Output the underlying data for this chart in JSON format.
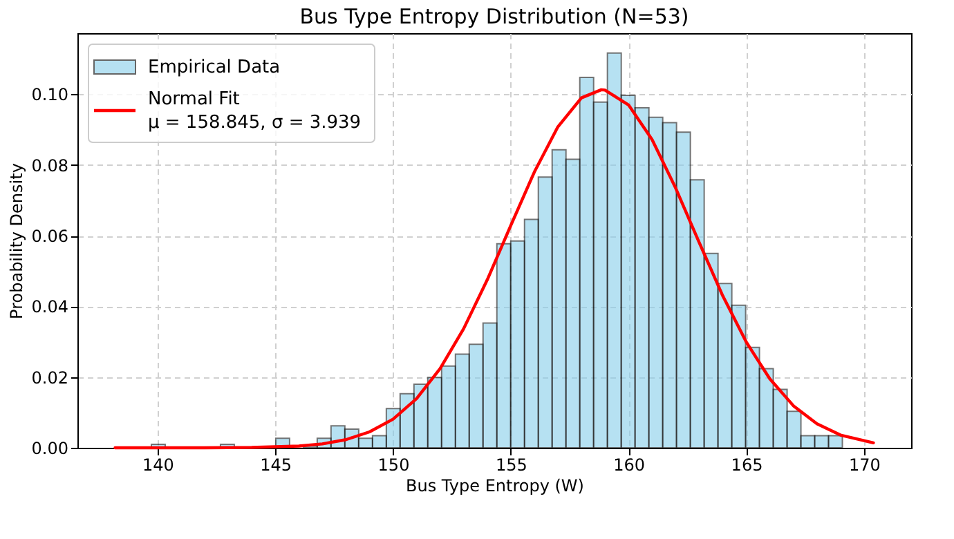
{
  "chart_data": {
    "type": "histogram",
    "title": "Bus Type Entropy Distribution (N=53)",
    "xlabel": "Bus Type Entropy (W)",
    "ylabel": "Probability Density",
    "bins": [
      139.74,
      140.327,
      140.914,
      141.5,
      142.087,
      142.674,
      143.261,
      143.848,
      144.434,
      145.021,
      145.608,
      146.195,
      146.782,
      147.368,
      147.955,
      148.542,
      149.129,
      149.716,
      150.302,
      150.889,
      151.476,
      152.063,
      152.65,
      153.236,
      153.823,
      154.41,
      154.997,
      155.584,
      156.17,
      156.757,
      157.344,
      157.931,
      158.518,
      159.104,
      159.691,
      160.278,
      160.865,
      161.452,
      162.038,
      162.625,
      163.212,
      163.799,
      164.386,
      164.972,
      165.559,
      166.146,
      166.733,
      167.32,
      167.906,
      168.493,
      169.08
    ],
    "series": [
      {
        "name": "Empirical Data",
        "color": "#87ceeb",
        "values": [
          0.001,
          0,
          0,
          0,
          0,
          0.001,
          0,
          0,
          null,
          0.0027,
          null,
          0.0005,
          0.0027,
          0.0062,
          0.0053,
          0.0027,
          0.0034,
          0.0111,
          0.0153,
          0.018,
          0.0199,
          0.0231,
          0.0265,
          0.0293,
          0.0353,
          0.0577,
          0.0585,
          0.0646,
          0.0766,
          0.0843,
          0.0816,
          0.1048,
          0.0978,
          0.1117,
          0.0997,
          0.0962,
          0.0935,
          0.092,
          0.0893,
          0.0758,
          0.055,
          0.0465,
          0.0403,
          0.0284,
          0.0224,
          0.0165,
          0.0103,
          0.0034,
          0.0034,
          0.0034
        ]
      },
      {
        "type": "line",
        "name": "Normal Fit\nμ = 158.845, σ = 3.939",
        "color": "#ff0000",
        "x": [
          138.2,
          140,
          142,
          144,
          146,
          147,
          148,
          149,
          150,
          151,
          152,
          153,
          154,
          155,
          156,
          157,
          158,
          158.845,
          159,
          160,
          161,
          162,
          163,
          164,
          165,
          166,
          167,
          168,
          169,
          170.4
        ],
        "values": [
          0,
          0,
          0,
          0.0001,
          0.0005,
          0.0011,
          0.0023,
          0.0045,
          0.0081,
          0.0139,
          0.0224,
          0.0337,
          0.0475,
          0.0629,
          0.078,
          0.0908,
          0.099,
          0.1013,
          0.1012,
          0.097,
          0.0872,
          0.0735,
          0.0581,
          0.043,
          0.0299,
          0.0195,
          0.0119,
          0.0068,
          0.0036,
          0.0014
        ]
      }
    ],
    "xlim": [
      136.6,
      172.0
    ],
    "ylim": [
      0,
      0.1173
    ],
    "xticks": [
      140,
      145,
      150,
      155,
      160,
      165,
      170
    ],
    "yticks": [
      {
        "value": 0,
        "label": "0.00"
      },
      {
        "value": 0.02,
        "label": "0.02"
      },
      {
        "value": 0.04,
        "label": "0.04"
      },
      {
        "value": 0.06,
        "label": "0.06"
      },
      {
        "value": 0.08,
        "label": "0.08"
      },
      {
        "value": 0.1,
        "label": "0.10"
      }
    ],
    "grid": true,
    "legend": "top left"
  }
}
